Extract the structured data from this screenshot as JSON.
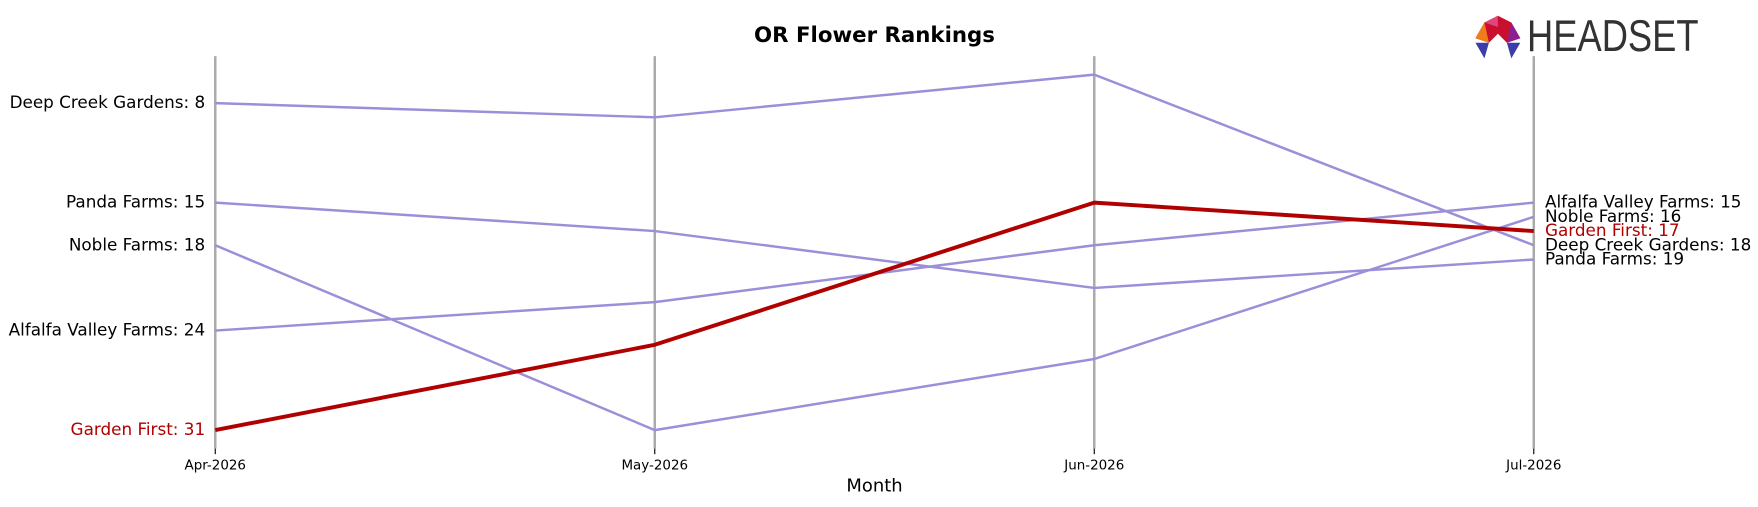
{
  "chart_data": {
    "type": "line",
    "title": "OR Flower Rankings",
    "x_label": "Month",
    "logo_text": "HEADSET",
    "categories": [
      "Apr-2026",
      "May-2026",
      "Jun-2026",
      "Jul-2026"
    ],
    "ylim": [
      32.3,
      4.7
    ],
    "series": [
      {
        "name": "Deep Creek Gardens",
        "color": "#9b8fd9",
        "label_color": "#000000",
        "line_width": 2.2,
        "values": [
          8,
          9,
          6,
          18
        ],
        "value_labels": [
          "Deep Creek Gardens: 8",
          null,
          null,
          "Deep Creek Gardens: 18"
        ]
      },
      {
        "name": "Panda Farms",
        "color": "#9b8fd9",
        "label_color": "#000000",
        "line_width": 2.2,
        "values": [
          15,
          17,
          21,
          19
        ],
        "value_labels": [
          "Panda Farms: 15",
          null,
          null,
          "Panda Farms: 19"
        ]
      },
      {
        "name": "Noble Farms",
        "color": "#9b8fd9",
        "label_color": "#000000",
        "line_width": 2.2,
        "values": [
          18,
          31,
          26,
          16
        ],
        "value_labels": [
          "Noble Farms: 18",
          null,
          null,
          "Noble Farms: 16"
        ]
      },
      {
        "name": "Alfalfa Valley Farms",
        "color": "#9b8fd9",
        "label_color": "#000000",
        "line_width": 2.2,
        "values": [
          24,
          22,
          18,
          15
        ],
        "value_labels": [
          "Alfalfa Valley Farms: 24",
          null,
          null,
          "Alfalfa Valley Farms: 15"
        ]
      },
      {
        "name": "Garden First",
        "color": "#b00000",
        "label_color": "#b00000",
        "line_width": 3.5,
        "values": [
          31,
          25,
          15,
          17
        ],
        "value_labels": [
          "Garden First: 31",
          null,
          null,
          "Garden First: 17"
        ]
      }
    ]
  }
}
